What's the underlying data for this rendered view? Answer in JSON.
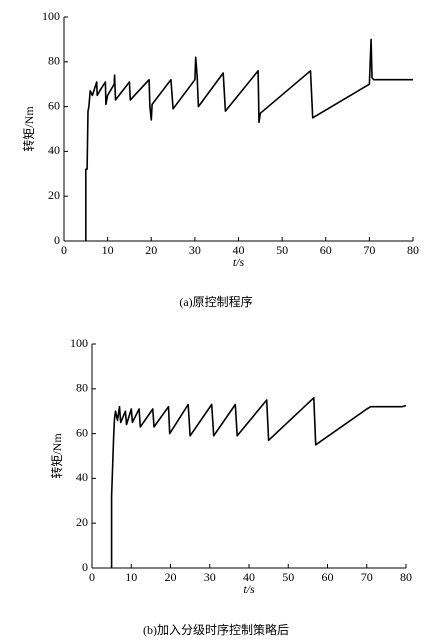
{
  "chart_data": [
    {
      "type": "line",
      "caption": "(a)原控制程序",
      "xlabel": "t/s",
      "ylabel": "转矩/Nm",
      "color": "#000000",
      "xlim": [
        0,
        80
      ],
      "ylim": [
        0,
        100
      ],
      "xticks": [
        0,
        10,
        20,
        30,
        40,
        50,
        60,
        70,
        80
      ],
      "yticks": [
        0,
        20,
        40,
        60,
        80,
        100
      ],
      "x": [
        5,
        5,
        5.3,
        5.5,
        5.7,
        6,
        6.5,
        7,
        7.5,
        7.6,
        8.5,
        9.5,
        9.6,
        10,
        11.5,
        11.6,
        11.8,
        15,
        15.2,
        19.5,
        19.7,
        20,
        20.2,
        24.5,
        25,
        30,
        30.2,
        30.5,
        30.8,
        36.5,
        37,
        44.5,
        44.7,
        45,
        56.5,
        57,
        70,
        70.2,
        70.4,
        70.6,
        71,
        80
      ],
      "values": [
        0,
        32,
        32,
        58,
        60,
        67,
        65,
        68,
        71,
        65,
        68,
        71,
        61,
        65,
        70,
        74,
        63,
        71,
        63,
        72,
        60,
        54,
        61,
        72,
        59,
        72,
        82,
        74,
        60,
        75,
        58,
        76,
        53,
        57,
        76,
        55,
        70,
        80,
        90,
        73,
        72,
        72
      ]
    },
    {
      "type": "line",
      "caption": "(b)加入分级时序控制策略后",
      "xlabel": "t/s",
      "ylabel": "转矩/Nm",
      "color": "#000000",
      "xlim": [
        0,
        80
      ],
      "ylim": [
        0,
        100
      ],
      "xticks": [
        0,
        10,
        20,
        30,
        40,
        50,
        60,
        70,
        80
      ],
      "yticks": [
        0,
        20,
        40,
        60,
        80,
        100
      ],
      "x": [
        5,
        5,
        5.5,
        5.7,
        6,
        6.5,
        7,
        7.3,
        8.5,
        8.8,
        10,
        10.3,
        12,
        12.3,
        15.5,
        15.8,
        19.5,
        19.8,
        24.5,
        25,
        30.5,
        31,
        36.5,
        37,
        44.5,
        45,
        56.5,
        57,
        70,
        71,
        79,
        80
      ],
      "values": [
        0,
        32,
        58,
        66,
        70,
        66,
        72,
        65,
        70,
        64,
        71,
        65,
        71,
        63,
        71,
        63,
        72,
        60,
        73,
        59,
        73,
        59,
        73,
        59,
        75,
        57,
        76,
        55,
        71,
        72,
        72,
        72.5
      ]
    }
  ]
}
